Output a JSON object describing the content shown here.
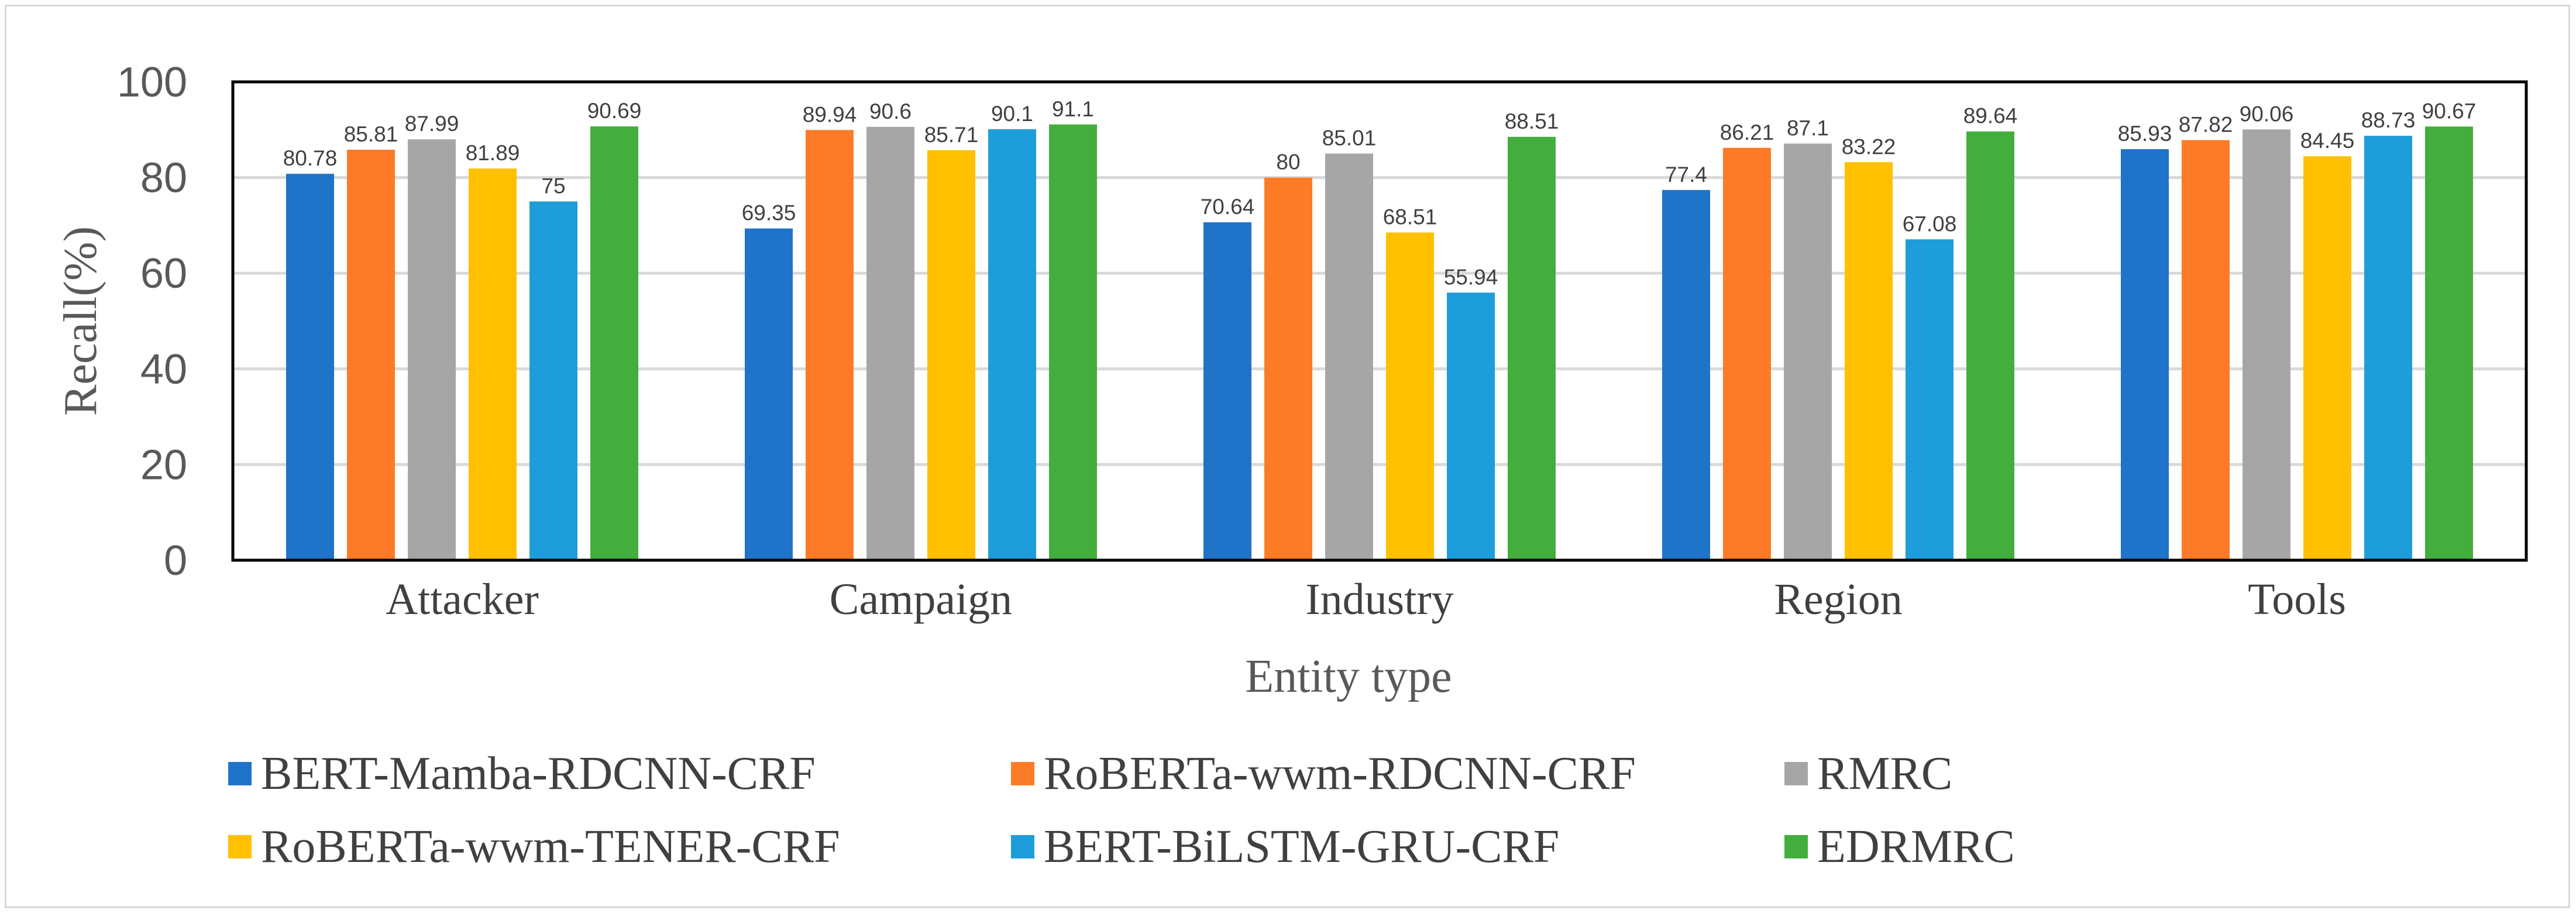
{
  "chart_data": {
    "type": "bar",
    "title": "",
    "xlabel": "Entity type",
    "ylabel": "Recall(%)",
    "ylim": [
      0,
      100
    ],
    "yticks": [
      "0",
      "20",
      "40",
      "60",
      "80",
      "100"
    ],
    "grid": true,
    "legend_position": "bottom",
    "categories": [
      "Attacker",
      "Campaign",
      "Industry",
      "Region",
      "Tools"
    ],
    "series": [
      {
        "name": "BERT-Mamba-RDCNN-CRF",
        "color": "#1f73c9",
        "values": [
          80.78,
          69.35,
          70.64,
          77.4,
          85.93
        ],
        "labels": [
          "80.78",
          "69.35",
          "70.64",
          "77.4",
          "85.93"
        ]
      },
      {
        "name": "RoBERTa-wwm-RDCNN-CRF",
        "color": "#fd7b26",
        "values": [
          85.81,
          89.94,
          80,
          86.21,
          87.82
        ],
        "labels": [
          "85.81",
          "89.94",
          "80",
          "86.21",
          "87.82"
        ]
      },
      {
        "name": "RMRC",
        "color": "#a6a6a6",
        "values": [
          87.99,
          90.6,
          85.01,
          87.1,
          90.06
        ],
        "labels": [
          "87.99",
          "90.6",
          "85.01",
          "87.1",
          "90.06"
        ]
      },
      {
        "name": "RoBERTa-wwm-TENER-CRF",
        "color": "#ffc000",
        "values": [
          81.89,
          85.71,
          68.51,
          83.22,
          84.45
        ],
        "labels": [
          "81.89",
          "85.71",
          "68.51",
          "83.22",
          "84.45"
        ]
      },
      {
        "name": "BERT-BiLSTM-GRU-CRF",
        "color": "#1e9ddb",
        "values": [
          75,
          90.1,
          55.94,
          67.08,
          88.73
        ],
        "labels": [
          "75",
          "90.1",
          "55.94",
          "67.08",
          "88.73"
        ]
      },
      {
        "name": "EDRMRC",
        "color": "#43ae3e",
        "values": [
          90.69,
          91.1,
          88.51,
          89.64,
          90.67
        ],
        "labels": [
          "90.69",
          "91.1",
          "88.51",
          "89.64",
          "90.67"
        ]
      }
    ]
  }
}
